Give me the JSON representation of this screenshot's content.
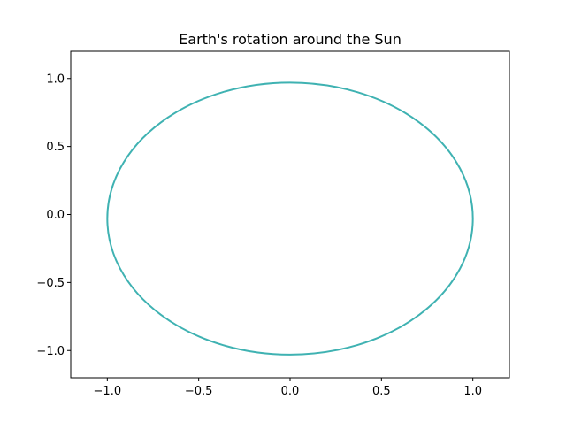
{
  "chart_data": {
    "type": "line",
    "title": "Earth's rotation around the Sun",
    "xlabel": "",
    "ylabel": "",
    "xlim": [
      -1.2,
      1.2
    ],
    "ylim": [
      -1.2,
      1.2
    ],
    "x_ticks": [
      -1.0,
      -0.5,
      0.0,
      0.5,
      1.0
    ],
    "y_ticks": [
      -1.0,
      -0.5,
      0.0,
      0.5,
      1.0
    ],
    "x_tick_labels": [
      "−1.0",
      "−0.5",
      "0.0",
      "0.5",
      "1.0"
    ],
    "y_tick_labels": [
      "−1.0",
      "−0.5",
      "0.0",
      "0.5",
      "1.0"
    ],
    "grid": false,
    "legend": "none",
    "series": [
      {
        "color": "#3fb2b2",
        "shape": "ellipse",
        "center": [
          0.0,
          -0.03
        ],
        "semi_axis_x": 1.0,
        "semi_axis_y": 1.0,
        "x_extent": [
          -1.0,
          1.0
        ],
        "y_extent": [
          -1.03,
          0.97
        ]
      }
    ]
  }
}
